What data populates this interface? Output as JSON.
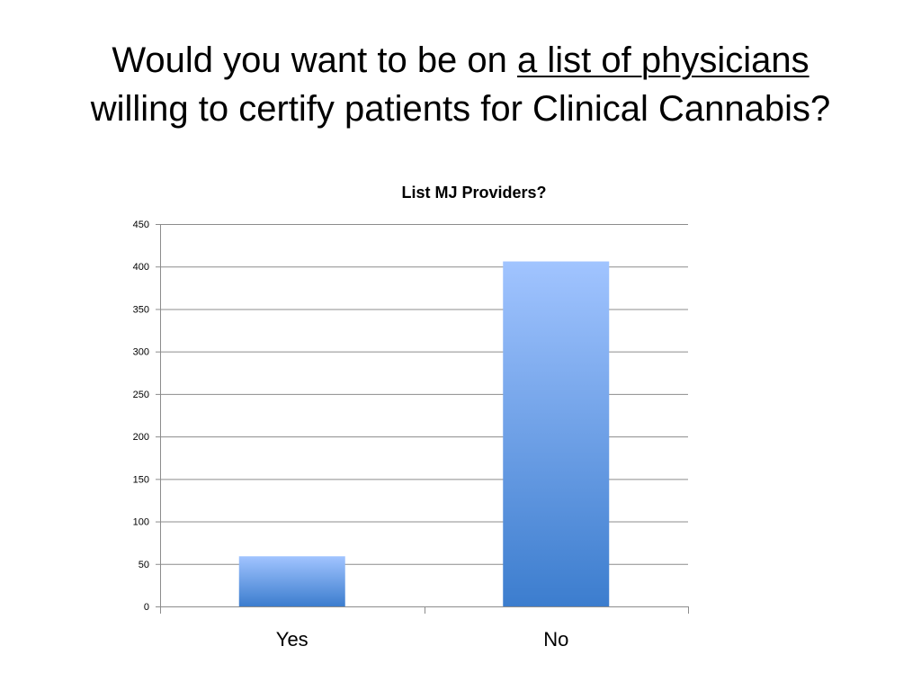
{
  "slide": {
    "title_part1": "Would you want to be on ",
    "title_underlined": "a list of physicians",
    "title_part2": "willing to certify patients for Clinical Cannabis?"
  },
  "colors": {
    "bar_top": "#a1c4ff",
    "bar_bottom": "#3c7dce",
    "gridline": "#8c8c8c",
    "axis": "#8c8c8c"
  },
  "chart_data": {
    "type": "bar",
    "title": "List MJ Providers?",
    "categories": [
      "Yes",
      "No"
    ],
    "values": [
      59,
      406
    ],
    "ylim": [
      0,
      450
    ],
    "yticks": [
      0,
      50,
      100,
      150,
      200,
      250,
      300,
      350,
      400,
      450
    ],
    "xlabel": "",
    "ylabel": "",
    "grid": true,
    "legend": "none"
  }
}
